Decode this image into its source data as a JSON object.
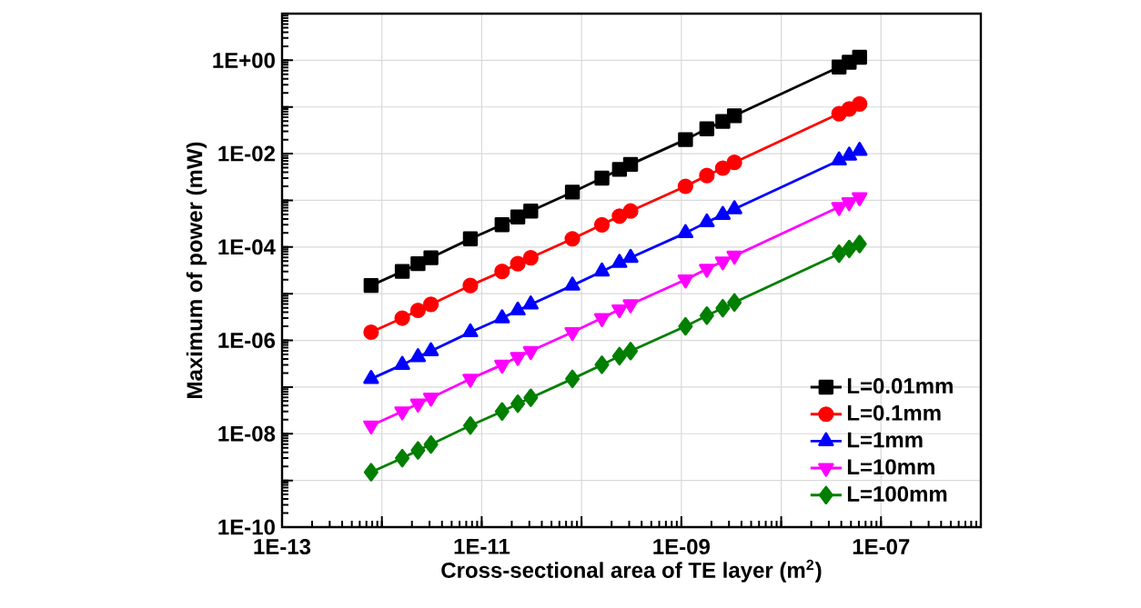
{
  "chart_data": {
    "type": "line",
    "xlabel": "Cross-sectional area of TE layer (m$^{2}$)",
    "ylabel": "Maximum of power (mW)",
    "x": [
      7.8e-13,
      1.6e-12,
      2.3e-12,
      3.1e-12,
      7.7e-12,
      1.6e-11,
      2.3e-11,
      3.1e-11,
      8.1e-11,
      1.6e-10,
      2.4e-10,
      3.1e-10,
      1.1e-09,
      1.8e-09,
      2.6e-09,
      3.4e-09,
      3.8e-08,
      4.8e-08,
      6.1e-08
    ],
    "series": [
      {
        "name": "L=0.01mm",
        "color": "#000000",
        "marker": "square",
        "values": [
          1.5e-05,
          3e-05,
          4.4e-05,
          5.9e-05,
          0.00015,
          0.0003,
          0.00044,
          0.00059,
          0.0015,
          0.003,
          0.0046,
          0.0059,
          0.02,
          0.034,
          0.049,
          0.065,
          0.72,
          0.91,
          1.16
        ]
      },
      {
        "name": "L=0.1mm",
        "color": "#ff0000",
        "marker": "circle",
        "values": [
          1.5e-06,
          3e-06,
          4.4e-06,
          5.9e-06,
          1.5e-05,
          3e-05,
          4.4e-05,
          5.9e-05,
          0.00015,
          0.0003,
          0.00046,
          0.00059,
          0.002,
          0.0034,
          0.0049,
          0.0065,
          0.072,
          0.091,
          0.116
        ]
      },
      {
        "name": "L=1mm",
        "color": "#0000ff",
        "marker": "triangle",
        "values": [
          1.5e-07,
          3e-07,
          4.4e-07,
          5.9e-07,
          1.5e-06,
          3e-06,
          4.4e-06,
          5.9e-06,
          1.5e-05,
          3e-05,
          4.6e-05,
          5.9e-05,
          0.0002,
          0.00034,
          0.00049,
          0.00065,
          0.0072,
          0.0091,
          0.0116
        ]
      },
      {
        "name": "L=10mm",
        "color": "#ff00ff",
        "marker": "triangle-down",
        "values": [
          1.5e-08,
          3e-08,
          4.4e-08,
          5.9e-08,
          1.5e-07,
          3e-07,
          4.4e-07,
          5.9e-07,
          1.5e-06,
          3e-06,
          4.6e-06,
          5.9e-06,
          2e-05,
          3.4e-05,
          4.9e-05,
          6.5e-05,
          0.00072,
          0.00091,
          0.00116
        ]
      },
      {
        "name": "L=100mm",
        "color": "#007f00",
        "marker": "diamond",
        "values": [
          1.5e-09,
          3e-09,
          4.4e-09,
          5.9e-09,
          1.5e-08,
          3e-08,
          4.4e-08,
          5.9e-08,
          1.5e-07,
          3e-07,
          4.6e-07,
          5.9e-07,
          2e-06,
          3.4e-06,
          4.9e-06,
          6.5e-06,
          7.2e-05,
          9.1e-05,
          0.000116
        ]
      }
    ],
    "log": "xy",
    "xlim": [
      1e-13,
      1e-06
    ],
    "ylim": [
      1e-10,
      10
    ],
    "xticks": [
      {
        "value": 1e-13,
        "label": "1E-13"
      },
      {
        "value": 1e-12,
        "label": null
      },
      {
        "value": 1e-11,
        "label": "1E-11"
      },
      {
        "value": 1e-10,
        "label": null
      },
      {
        "value": 1e-09,
        "label": "1E-09"
      },
      {
        "value": 1e-08,
        "label": null
      },
      {
        "value": 1e-07,
        "label": "1E-07"
      },
      {
        "value": 1e-06,
        "label": null
      }
    ],
    "yticks": [
      {
        "value": 1e-10,
        "label": "1E-10"
      },
      {
        "value": 1e-09,
        "label": null
      },
      {
        "value": 1e-08,
        "label": "1E-08"
      },
      {
        "value": 1e-07,
        "label": null
      },
      {
        "value": 1e-06,
        "label": "1E-06"
      },
      {
        "value": 1e-05,
        "label": null
      },
      {
        "value": 0.0001,
        "label": "1E-04"
      },
      {
        "value": 0.001,
        "label": null
      },
      {
        "value": 0.01,
        "label": "1E-02"
      },
      {
        "value": 0.1,
        "label": null
      },
      {
        "value": 1,
        "label": "1E+00"
      },
      {
        "value": 10,
        "label": null
      }
    ],
    "grid": true,
    "legend": "bottom right",
    "line_style": "solid"
  }
}
